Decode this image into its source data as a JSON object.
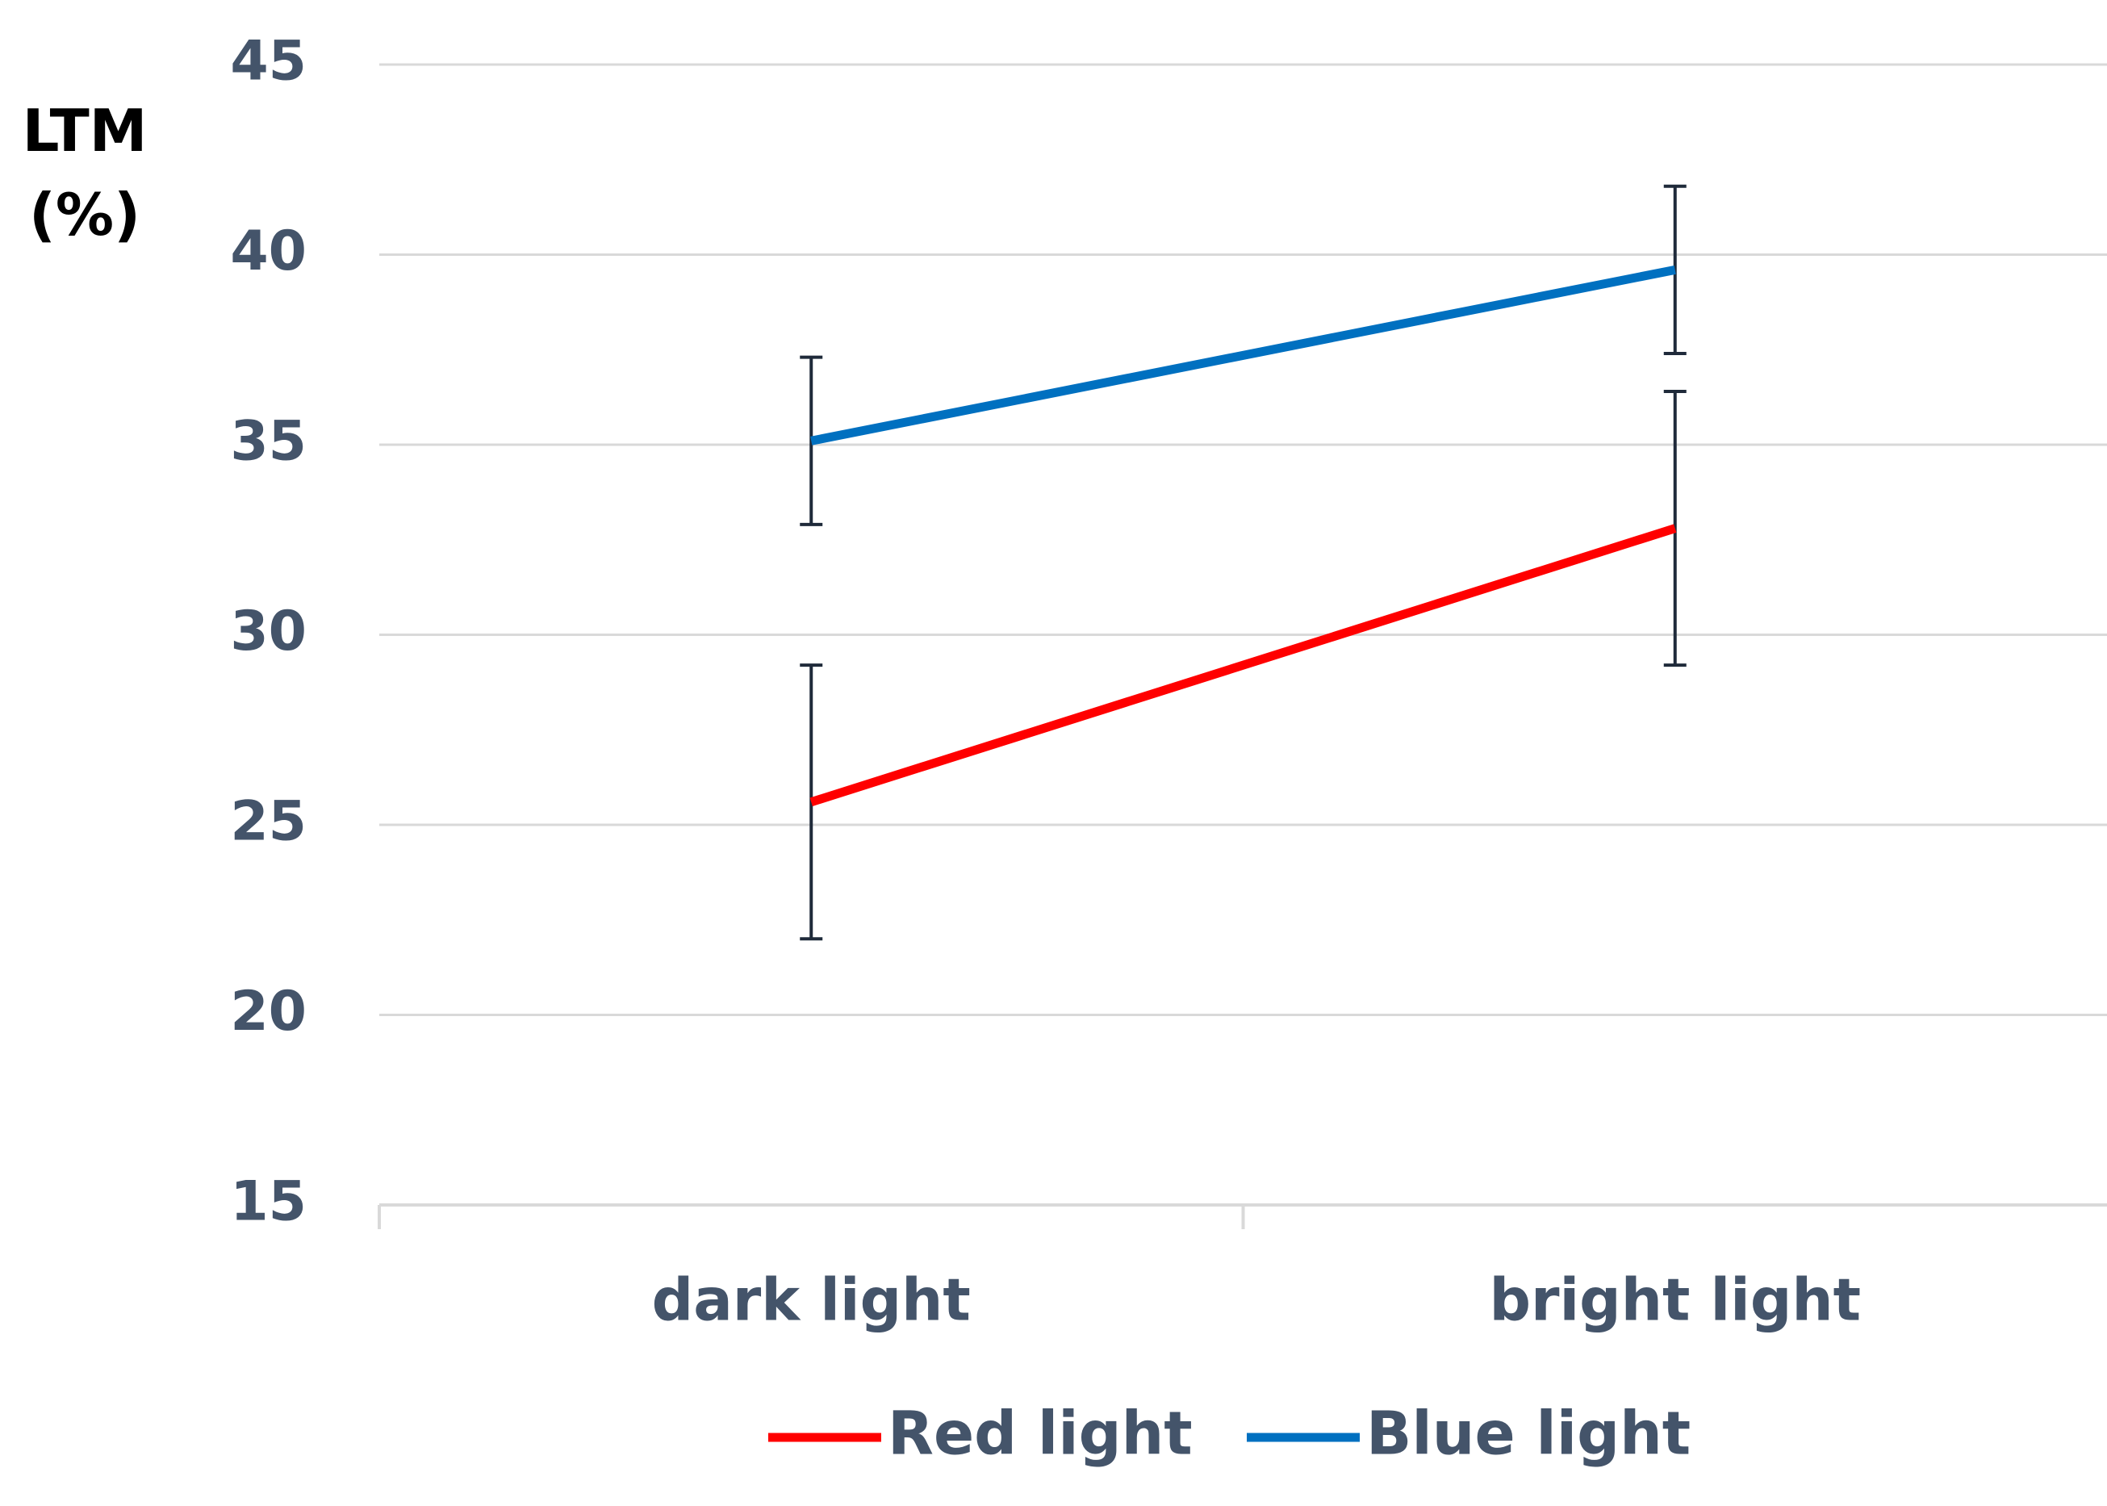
{
  "chart_data": {
    "type": "line",
    "y_label": "LTM (%)",
    "categories": [
      "dark light",
      "bright light"
    ],
    "series": [
      {
        "name": "Red light",
        "color": "#ff0000",
        "values": [
          25.6,
          32.8
        ],
        "errors": [
          3.6,
          3.6
        ]
      },
      {
        "name": "Blue light",
        "color": "#0070c0",
        "values": [
          35.1,
          39.6
        ],
        "errors": [
          2.2,
          2.2
        ]
      }
    ],
    "ylim": [
      15,
      45
    ],
    "yticks": [
      15,
      20,
      25,
      30,
      35,
      40,
      45
    ],
    "grid": true
  }
}
